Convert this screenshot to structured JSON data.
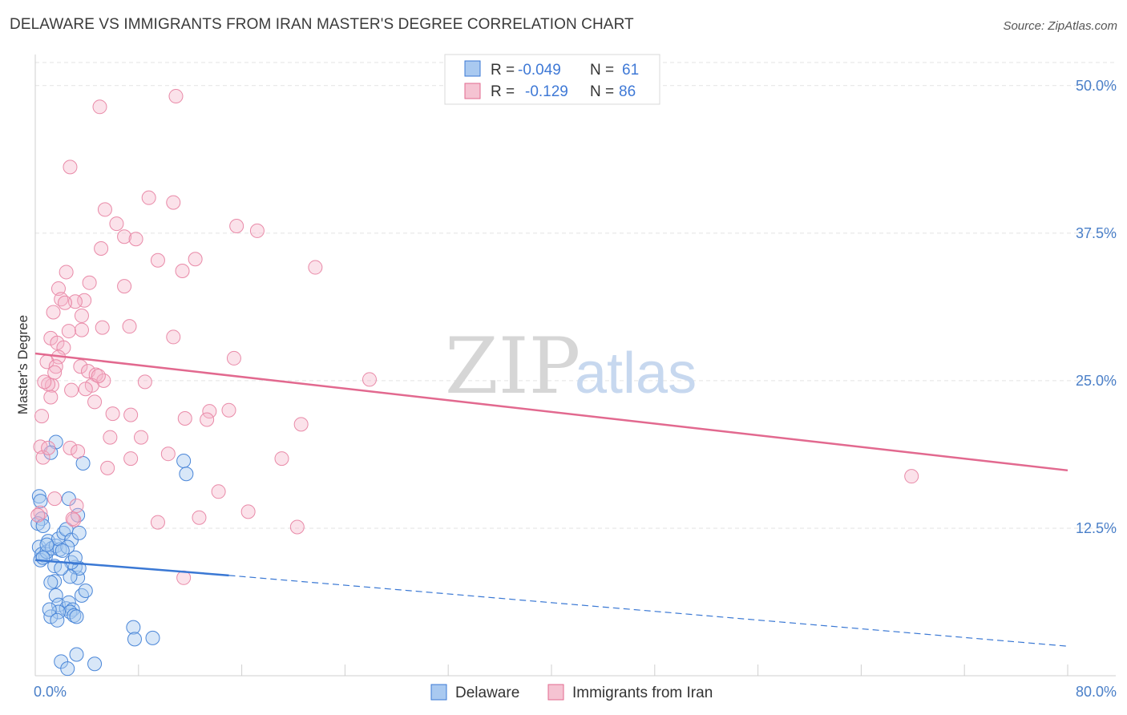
{
  "title": "DELAWARE VS IMMIGRANTS FROM IRAN MASTER'S DEGREE CORRELATION CHART",
  "source": "Source: ZipAtlas.com",
  "colors": {
    "blue": "#3a78d4",
    "blue_fill": "#a9c9f0",
    "pink": "#e2698f",
    "pink_fill": "#f5b4c7",
    "tick": "#4a7fc8"
  },
  "legend": {
    "r_label": "R =",
    "n_label": "N =",
    "series1_r": "-0.049",
    "series1_n": "61",
    "series2_r": "-0.129",
    "series2_n": "86"
  },
  "bottom_legend": {
    "series1": "Delaware",
    "series2": "Immigrants from Iran"
  },
  "watermark": {
    "zip": "ZIP",
    "atlas": "atlas"
  },
  "chart_data": {
    "type": "scatter",
    "title": "DELAWARE VS IMMIGRANTS FROM IRAN MASTER'S DEGREE CORRELATION CHART",
    "xlabel": "",
    "ylabel": "Master's Degree",
    "xlim": [
      0,
      80
    ],
    "ylim": [
      0,
      52.5
    ],
    "x_tick_labels": [
      "0.0%",
      "80.0%"
    ],
    "y_ticks": [
      12.5,
      25.0,
      37.5,
      50.0
    ],
    "y_tick_labels": [
      "12.5%",
      "25.0%",
      "37.5%",
      "50.0%"
    ],
    "grid": true,
    "series": [
      {
        "name": "Delaware",
        "color": "#3a78d4",
        "trend": {
          "x0": 0,
          "y0": 9.8,
          "x1": 15,
          "y1": 8.5,
          "dashed_to_x": 80,
          "dashed_to_y": 2.5
        },
        "points": [
          [
            0.3,
            15.2
          ],
          [
            0.4,
            14.8
          ],
          [
            0.5,
            13.3
          ],
          [
            0.2,
            12.9
          ],
          [
            0.6,
            12.7
          ],
          [
            0.3,
            10.9
          ],
          [
            0.5,
            10.3
          ],
          [
            0.8,
            10.1
          ],
          [
            0.4,
            9.8
          ],
          [
            0.9,
            10.5
          ],
          [
            1.0,
            11.4
          ],
          [
            1.3,
            10.8
          ],
          [
            1.6,
            11.0
          ],
          [
            1.9,
            10.7
          ],
          [
            1.8,
            11.6
          ],
          [
            2.2,
            12.1
          ],
          [
            2.4,
            12.4
          ],
          [
            2.8,
            11.5
          ],
          [
            2.5,
            10.9
          ],
          [
            2.1,
            10.6
          ],
          [
            1.5,
            9.3
          ],
          [
            1.5,
            8.0
          ],
          [
            1.2,
            7.9
          ],
          [
            1.6,
            6.8
          ],
          [
            1.8,
            6.0
          ],
          [
            2.4,
            5.7
          ],
          [
            2.6,
            6.2
          ],
          [
            2.9,
            5.6
          ],
          [
            2.7,
            5.4
          ],
          [
            1.8,
            5.4
          ],
          [
            1.2,
            5.0
          ],
          [
            1.1,
            5.6
          ],
          [
            1.7,
            4.7
          ],
          [
            3.0,
            5.1
          ],
          [
            3.2,
            5.0
          ],
          [
            3.3,
            8.3
          ],
          [
            3.1,
            9.2
          ],
          [
            3.4,
            9.1
          ],
          [
            2.8,
            9.6
          ],
          [
            3.1,
            10.0
          ],
          [
            2.7,
            8.4
          ],
          [
            3.6,
            6.8
          ],
          [
            3.9,
            7.2
          ],
          [
            3.3,
            13.6
          ],
          [
            3.4,
            12.1
          ],
          [
            2.6,
            15.0
          ],
          [
            1.6,
            19.8
          ],
          [
            1.2,
            18.9
          ],
          [
            3.7,
            18.0
          ],
          [
            11.5,
            18.2
          ],
          [
            11.7,
            17.1
          ],
          [
            7.6,
            4.1
          ],
          [
            7.7,
            3.1
          ],
          [
            9.1,
            3.2
          ],
          [
            2.0,
            1.2
          ],
          [
            2.5,
            0.6
          ],
          [
            3.2,
            1.8
          ],
          [
            4.6,
            1.0
          ],
          [
            0.6,
            10.0
          ],
          [
            0.9,
            11.1
          ],
          [
            2.0,
            9.1
          ]
        ]
      },
      {
        "name": "Immigrants from Iran",
        "color": "#e2698f",
        "trend": {
          "x0": 0,
          "y0": 27.3,
          "x1": 80,
          "y1": 17.4
        },
        "points": [
          [
            10.9,
            49.1
          ],
          [
            5.0,
            48.2
          ],
          [
            2.7,
            43.1
          ],
          [
            5.4,
            39.5
          ],
          [
            8.8,
            40.5
          ],
          [
            10.7,
            40.1
          ],
          [
            6.3,
            38.3
          ],
          [
            6.9,
            37.2
          ],
          [
            7.8,
            37.0
          ],
          [
            15.6,
            38.1
          ],
          [
            17.2,
            37.7
          ],
          [
            5.1,
            36.2
          ],
          [
            9.5,
            35.2
          ],
          [
            11.4,
            34.3
          ],
          [
            12.4,
            35.3
          ],
          [
            21.7,
            34.6
          ],
          [
            2.4,
            34.2
          ],
          [
            4.2,
            33.3
          ],
          [
            6.9,
            33.0
          ],
          [
            1.8,
            32.8
          ],
          [
            2.0,
            31.9
          ],
          [
            3.8,
            31.8
          ],
          [
            3.1,
            31.7
          ],
          [
            2.3,
            31.6
          ],
          [
            1.4,
            30.8
          ],
          [
            3.6,
            30.5
          ],
          [
            5.2,
            29.5
          ],
          [
            7.3,
            29.6
          ],
          [
            3.6,
            29.3
          ],
          [
            2.6,
            29.2
          ],
          [
            1.2,
            28.6
          ],
          [
            1.7,
            28.2
          ],
          [
            2.2,
            27.8
          ],
          [
            1.8,
            27.0
          ],
          [
            10.7,
            28.7
          ],
          [
            15.4,
            26.9
          ],
          [
            0.9,
            26.6
          ],
          [
            1.6,
            26.2
          ],
          [
            3.5,
            26.2
          ],
          [
            4.1,
            25.8
          ],
          [
            4.7,
            25.5
          ],
          [
            5.3,
            25.0
          ],
          [
            4.4,
            24.6
          ],
          [
            8.5,
            24.9
          ],
          [
            1.3,
            24.6
          ],
          [
            1.0,
            24.7
          ],
          [
            0.7,
            24.9
          ],
          [
            2.8,
            24.2
          ],
          [
            3.9,
            24.3
          ],
          [
            25.9,
            25.1
          ],
          [
            1.2,
            23.6
          ],
          [
            4.6,
            23.2
          ],
          [
            13.5,
            22.4
          ],
          [
            15.0,
            22.5
          ],
          [
            6.0,
            22.2
          ],
          [
            7.4,
            22.1
          ],
          [
            11.6,
            21.8
          ],
          [
            13.3,
            21.7
          ],
          [
            0.5,
            22.0
          ],
          [
            20.6,
            21.3
          ],
          [
            5.8,
            20.2
          ],
          [
            8.2,
            20.2
          ],
          [
            0.4,
            19.4
          ],
          [
            2.7,
            19.3
          ],
          [
            3.3,
            19.0
          ],
          [
            10.3,
            18.8
          ],
          [
            0.6,
            18.5
          ],
          [
            7.4,
            18.4
          ],
          [
            19.1,
            18.4
          ],
          [
            5.6,
            17.6
          ],
          [
            67.9,
            16.9
          ],
          [
            14.2,
            15.6
          ],
          [
            1.5,
            15.0
          ],
          [
            3.2,
            14.4
          ],
          [
            16.5,
            13.9
          ],
          [
            0.4,
            13.8
          ],
          [
            0.2,
            13.6
          ],
          [
            3.0,
            13.2
          ],
          [
            12.7,
            13.4
          ],
          [
            9.5,
            13.0
          ],
          [
            20.3,
            12.6
          ],
          [
            11.5,
            8.3
          ],
          [
            1.0,
            19.3
          ],
          [
            2.9,
            13.3
          ],
          [
            4.9,
            25.4
          ],
          [
            1.5,
            25.7
          ]
        ]
      }
    ]
  }
}
